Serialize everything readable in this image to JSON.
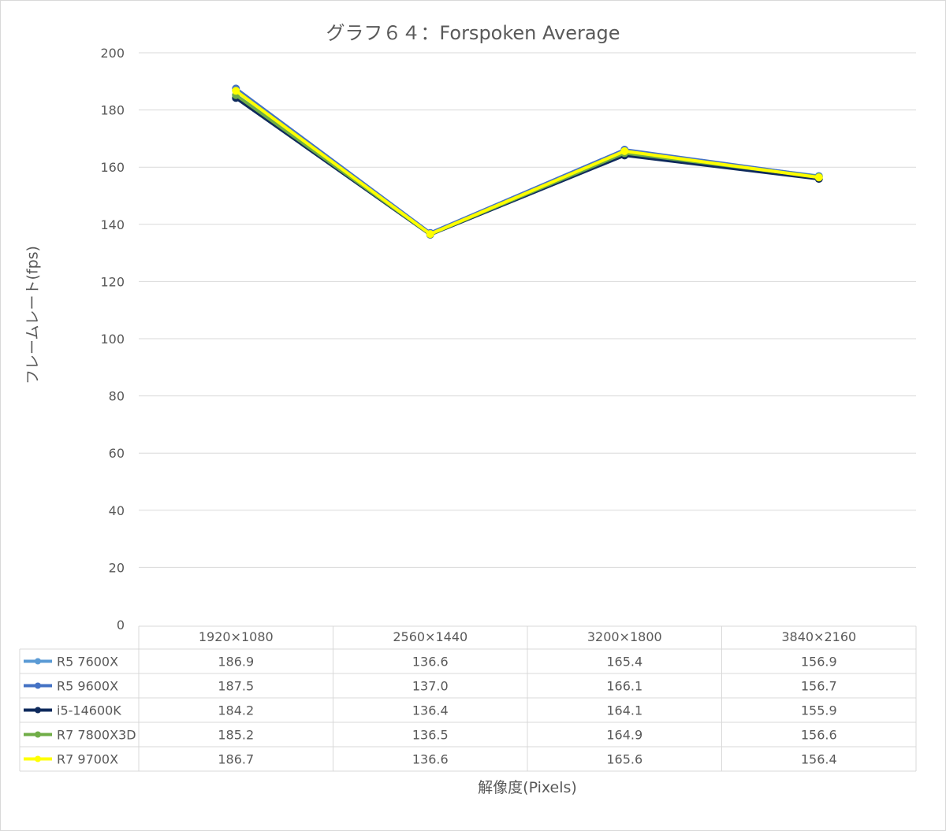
{
  "chart_data": {
    "type": "line",
    "title": "グラフ６４：Forspoken Average",
    "xlabel": "解像度(Pixels)",
    "ylabel": "フレームレート(fps)",
    "ylim": [
      0,
      200
    ],
    "yticks": [
      0,
      20,
      40,
      60,
      80,
      100,
      120,
      140,
      160,
      180,
      200
    ],
    "grid": true,
    "legend": "data-table",
    "categories": [
      "1920×1080",
      "2560×1440",
      "3200×1800",
      "3840×2160"
    ],
    "series": [
      {
        "name": "R5 7600X",
        "color": "#5b9bd5",
        "values": [
          186.9,
          136.6,
          165.4,
          156.9
        ],
        "labels": [
          "186.9",
          "136.6",
          "165.4",
          "156.9"
        ]
      },
      {
        "name": "R5 9600X",
        "color": "#4472c4",
        "values": [
          187.5,
          137.0,
          166.1,
          156.7
        ],
        "labels": [
          "187.5",
          "137.0",
          "166.1",
          "156.7"
        ]
      },
      {
        "name": "i5-14600K",
        "color": "#0e2a5c",
        "values": [
          184.2,
          136.4,
          164.1,
          155.9
        ],
        "labels": [
          "184.2",
          "136.4",
          "164.1",
          "155.9"
        ]
      },
      {
        "name": "R7 7800X3D",
        "color": "#70ad47",
        "values": [
          185.2,
          136.5,
          164.9,
          156.6
        ],
        "labels": [
          "185.2",
          "136.5",
          "164.9",
          "156.6"
        ]
      },
      {
        "name": "R7 9700X",
        "color": "#ffff00",
        "values": [
          186.7,
          136.6,
          165.6,
          156.4
        ],
        "labels": [
          "186.7",
          "136.6",
          "165.6",
          "156.4"
        ]
      }
    ]
  }
}
